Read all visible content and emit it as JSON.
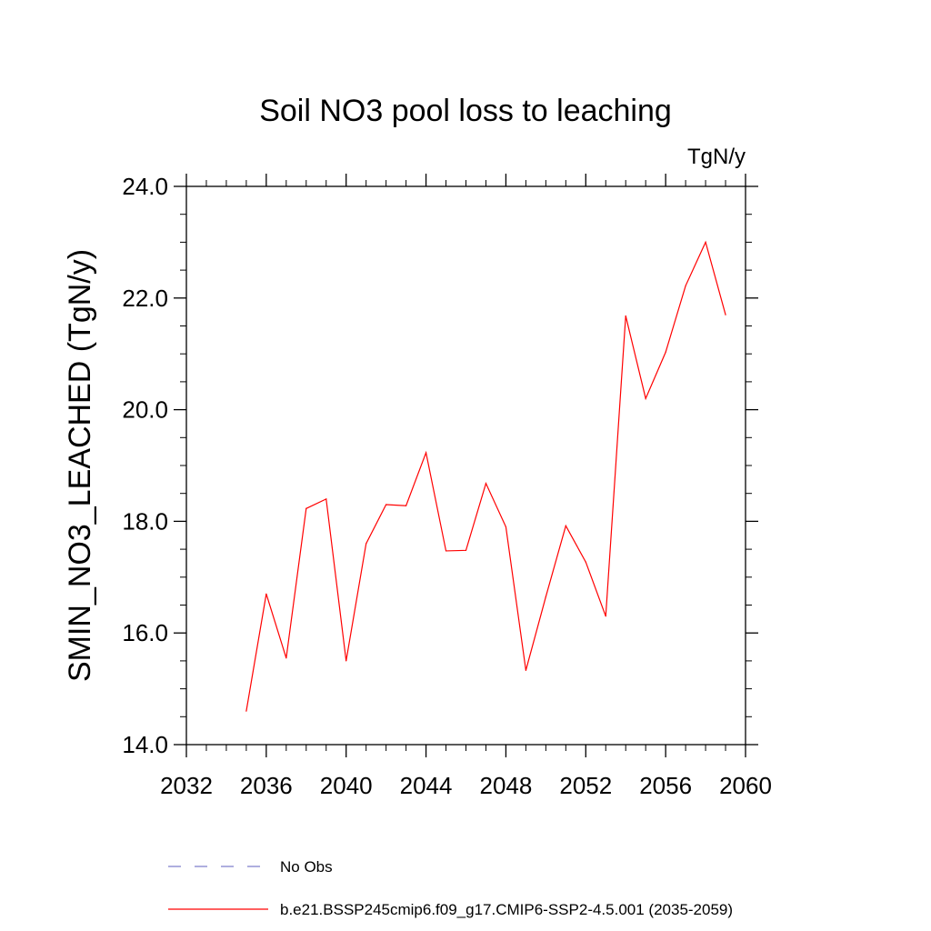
{
  "chart_data": {
    "type": "line",
    "title": "Soil NO3 pool loss to leaching",
    "units": "TgN/y",
    "ylabel": "SMIN_NO3_LEACHED  (TgN/y)",
    "xlabel": "",
    "xlim": [
      2032,
      2060
    ],
    "ylim": [
      14.0,
      24.0
    ],
    "x_ticks": [
      2032,
      2036,
      2040,
      2044,
      2048,
      2052,
      2056,
      2060
    ],
    "x_tick_labels": [
      "2032",
      "2036",
      "2040",
      "2044",
      "2048",
      "2052",
      "2056",
      "2060"
    ],
    "y_ticks": [
      14,
      16,
      18,
      20,
      22,
      24
    ],
    "y_tick_labels": [
      "14.0",
      "16.0",
      "18.0",
      "20.0",
      "22.0",
      "24.0"
    ],
    "grid": false,
    "legend_position": "bottom",
    "series": [
      {
        "name": "b.e21.BSSP245cmip6.f09_g17.CMIP6-SSP2-4.5.001 (2035-2059)",
        "color": "#ff0000",
        "style": "solid",
        "x": [
          2035,
          2036,
          2037,
          2038,
          2039,
          2040,
          2041,
          2042,
          2043,
          2044,
          2045,
          2046,
          2047,
          2048,
          2049,
          2050,
          2051,
          2052,
          2053,
          2054,
          2055,
          2056,
          2057,
          2058,
          2059
        ],
        "y": [
          14.6,
          16.7,
          15.55,
          18.23,
          18.4,
          15.5,
          17.6,
          18.3,
          18.28,
          19.23,
          17.47,
          17.48,
          18.68,
          17.9,
          15.33,
          16.65,
          17.92,
          17.27,
          16.3,
          21.68,
          20.2,
          21.03,
          22.22,
          23.0,
          21.7
        ]
      },
      {
        "name": "No Obs",
        "color": "#7f7fcc",
        "style": "dashed",
        "x": [],
        "y": []
      }
    ]
  }
}
